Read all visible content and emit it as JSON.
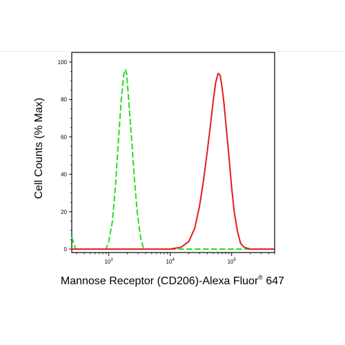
{
  "chart_data": {
    "type": "line",
    "title": "",
    "xlabel": "Mannose Receptor (CD206)-Alexa Fluor",
    "xlabel_trademark": "®",
    "xlabel_suffix": "647",
    "ylabel": "Cell Counts (% Max)",
    "x_scale": "log",
    "xlim": [
      250,
      500000
    ],
    "ylim": [
      0,
      100
    ],
    "y_ticks": [
      "0",
      "20",
      "40",
      "60",
      "80",
      "100"
    ],
    "x_ticks": [
      {
        "value": 1000,
        "base": "10",
        "exp": "3"
      },
      {
        "value": 10000,
        "base": "10",
        "exp": "4"
      },
      {
        "value": 100000,
        "base": "10",
        "exp": "5"
      }
    ],
    "grid": false,
    "legend": "none",
    "series": [
      {
        "color": "#22dd22",
        "style": "dashed",
        "x": [
          252,
          270,
          290,
          320,
          450,
          900,
          1000,
          1150,
          1300,
          1450,
          1600,
          1750,
          1850,
          1950,
          2050,
          2200,
          2400,
          2650,
          2900,
          3300,
          3700,
          5000,
          10000,
          50000,
          100000,
          300000,
          480000
        ],
        "y": [
          6,
          3,
          0,
          0,
          0,
          0,
          4,
          15,
          36,
          60,
          80,
          93,
          96,
          94,
          85,
          72,
          55,
          35,
          20,
          6,
          0,
          0,
          0,
          0,
          0,
          0,
          0
        ]
      },
      {
        "color": "#e31a1c",
        "style": "solid",
        "x": [
          250,
          5000,
          10000,
          15000,
          20000,
          25000,
          30000,
          35000,
          40000,
          45000,
          50000,
          55000,
          60000,
          65000,
          70000,
          75000,
          80000,
          90000,
          100000,
          110000,
          125000,
          140000,
          160000,
          200000,
          300000,
          480000
        ],
        "y": [
          0,
          0,
          0,
          1,
          4,
          11,
          23,
          37,
          52,
          66,
          79,
          89,
          94,
          93,
          86,
          78,
          68,
          50,
          33,
          20,
          9,
          3,
          1,
          0,
          0,
          0
        ]
      }
    ]
  }
}
